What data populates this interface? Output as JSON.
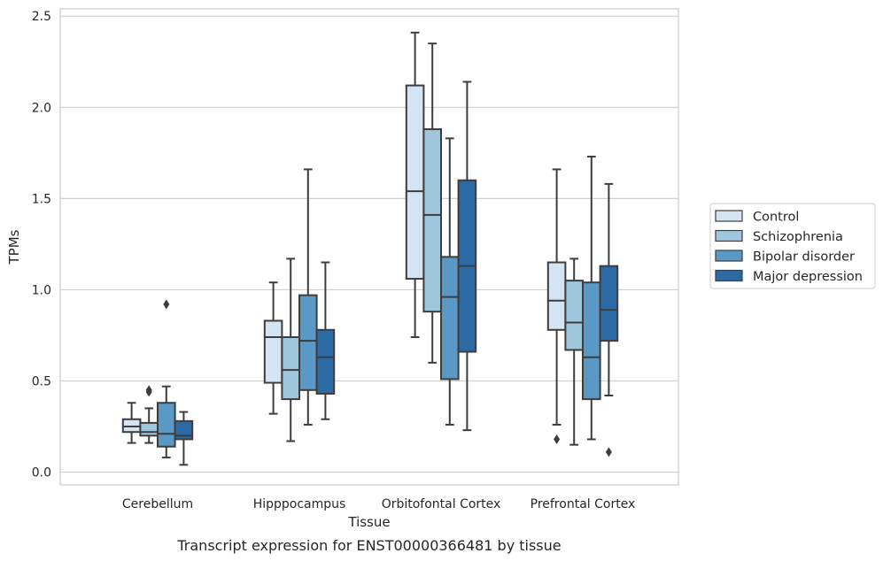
{
  "chart_data": {
    "type": "box",
    "caption": "Transcript expression for ENST00000366481 by tissue",
    "xlabel": "Tissue",
    "ylabel": "TPMs",
    "ylim": [
      -0.07,
      2.54
    ],
    "yticks": [
      "0.0",
      "0.5",
      "1.0",
      "1.5",
      "2.0",
      "2.5"
    ],
    "grid": "horizontal",
    "legend_position": "right",
    "categories": [
      "Cerebellum",
      "Hipppocampus",
      "Orbitofontal Cortex",
      "Prefrontal Cortex"
    ],
    "series": [
      {
        "name": "Control",
        "color": "#d5e4f3",
        "boxes": [
          {
            "whisker_low": 0.16,
            "q1": 0.22,
            "median": 0.25,
            "q3": 0.29,
            "whisker_high": 0.38,
            "outliers": []
          },
          {
            "whisker_low": 0.32,
            "q1": 0.49,
            "median": 0.74,
            "q3": 0.83,
            "whisker_high": 1.04,
            "outliers": []
          },
          {
            "whisker_low": 0.74,
            "q1": 1.06,
            "median": 1.54,
            "q3": 2.12,
            "whisker_high": 2.41,
            "outliers": []
          },
          {
            "whisker_low": 0.26,
            "q1": 0.78,
            "median": 0.94,
            "q3": 1.15,
            "whisker_high": 1.66,
            "outliers": [
              0.18
            ]
          }
        ]
      },
      {
        "name": "Schizophrenia",
        "color": "#a1c7df",
        "boxes": [
          {
            "whisker_low": 0.16,
            "q1": 0.2,
            "median": 0.22,
            "q3": 0.27,
            "whisker_high": 0.35,
            "outliers": [
              0.44,
              0.45
            ]
          },
          {
            "whisker_low": 0.17,
            "q1": 0.4,
            "median": 0.56,
            "q3": 0.74,
            "whisker_high": 1.17,
            "outliers": []
          },
          {
            "whisker_low": 0.6,
            "q1": 0.88,
            "median": 1.41,
            "q3": 1.88,
            "whisker_high": 2.35,
            "outliers": []
          },
          {
            "whisker_low": 0.15,
            "q1": 0.67,
            "median": 0.82,
            "q3": 1.05,
            "whisker_high": 1.17,
            "outliers": []
          }
        ]
      },
      {
        "name": "Bipolar disorder",
        "color": "#5a98c6",
        "boxes": [
          {
            "whisker_low": 0.08,
            "q1": 0.14,
            "median": 0.21,
            "q3": 0.38,
            "whisker_high": 0.47,
            "outliers": [
              0.92
            ]
          },
          {
            "whisker_low": 0.26,
            "q1": 0.45,
            "median": 0.72,
            "q3": 0.97,
            "whisker_high": 1.66,
            "outliers": []
          },
          {
            "whisker_low": 0.26,
            "q1": 0.51,
            "median": 0.96,
            "q3": 1.18,
            "whisker_high": 1.83,
            "outliers": []
          },
          {
            "whisker_low": 0.18,
            "q1": 0.4,
            "median": 0.63,
            "q3": 1.04,
            "whisker_high": 1.73,
            "outliers": []
          }
        ]
      },
      {
        "name": "Major depression",
        "color": "#2c6aa6",
        "boxes": [
          {
            "whisker_low": 0.04,
            "q1": 0.18,
            "median": 0.2,
            "q3": 0.28,
            "whisker_high": 0.33,
            "outliers": []
          },
          {
            "whisker_low": 0.29,
            "q1": 0.43,
            "median": 0.63,
            "q3": 0.78,
            "whisker_high": 1.15,
            "outliers": []
          },
          {
            "whisker_low": 0.23,
            "q1": 0.66,
            "median": 1.13,
            "q3": 1.6,
            "whisker_high": 2.14,
            "outliers": []
          },
          {
            "whisker_low": 0.42,
            "q1": 0.72,
            "median": 0.89,
            "q3": 1.13,
            "whisker_high": 1.58,
            "outliers": [
              0.11
            ]
          }
        ]
      }
    ]
  }
}
